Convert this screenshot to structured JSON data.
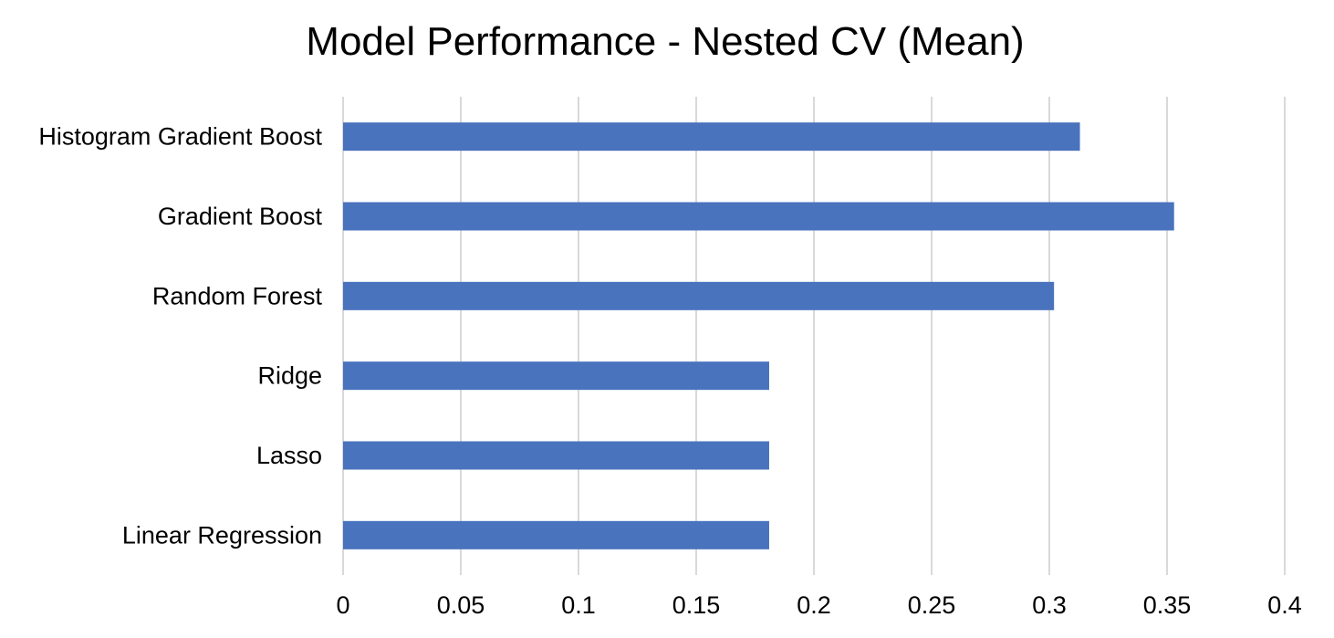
{
  "chart_data": {
    "type": "bar",
    "orientation": "horizontal",
    "title": "Model Performance - Nested CV (Mean)",
    "xlabel": "",
    "ylabel": "",
    "categories": [
      "Histogram Gradient Boost",
      "Gradient Boost",
      "Random Forest",
      "Ridge",
      "Lasso",
      "Linear Regression"
    ],
    "values": [
      0.313,
      0.353,
      0.302,
      0.181,
      0.181,
      0.181
    ],
    "xlim": [
      0,
      0.4
    ],
    "x_ticks": [
      0,
      0.05,
      0.1,
      0.15,
      0.2,
      0.25,
      0.3,
      0.35,
      0.4
    ],
    "x_tick_labels": [
      "0",
      "0.05",
      "0.1",
      "0.15",
      "0.2",
      "0.25",
      "0.3",
      "0.35",
      "0.4"
    ],
    "grid": "vertical",
    "legend": "none",
    "colors": {
      "bar": "#4a73be",
      "grid": "#d9d9d9",
      "text": "#000000"
    }
  }
}
